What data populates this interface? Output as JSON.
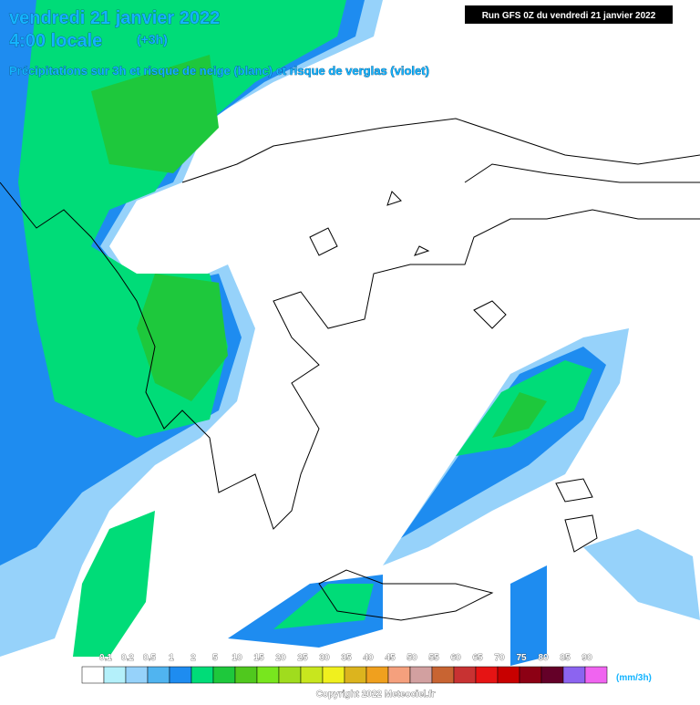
{
  "header": {
    "date": "vendredi 21 janvier 2022",
    "time": "4:00 locale",
    "offset": "(+3h)",
    "subtitle": "Précipitations sur 3h et risque de neige (blanc) et risque de verglas (violet)",
    "run": "Run GFS 0Z du vendredi 21 janvier 2022"
  },
  "legend": {
    "labels": [
      "0.1",
      "0.2",
      "0.5",
      "1",
      "2",
      "5",
      "10",
      "15",
      "20",
      "25",
      "30",
      "35",
      "40",
      "45",
      "50",
      "55",
      "60",
      "65",
      "70",
      "75",
      "80",
      "85",
      "90"
    ],
    "colors": [
      "#ffffff",
      "#b4f0fa",
      "#96d2fa",
      "#50b4f0",
      "#1e8cf0",
      "#00dc78",
      "#1ec83c",
      "#50c81e",
      "#78e61e",
      "#a0dc1e",
      "#c8e61e",
      "#f0f01e",
      "#dcb41e",
      "#f0a01e",
      "#f5a07d",
      "#d2a0a0",
      "#c86432",
      "#c83232",
      "#e61414",
      "#c80000",
      "#8c0014",
      "#640028",
      "#8c64f0",
      "#f064f0"
    ],
    "unit": "(mm/3h)"
  },
  "footer": {
    "copyright": "Copyright 2022 Meteociel.fr"
  }
}
